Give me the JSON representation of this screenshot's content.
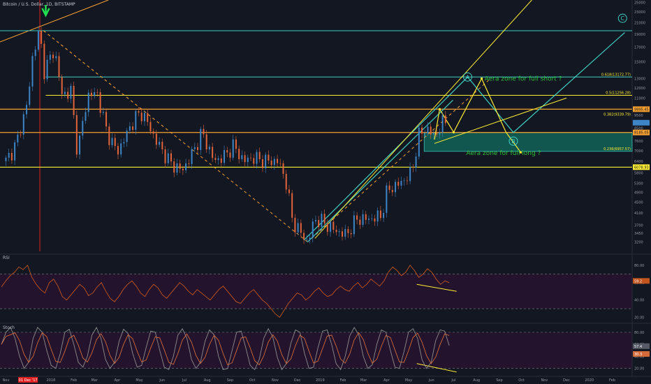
{
  "header": {
    "symbol_title": "Bitcoin / U.S. Dollar, 1D, BITSTAMP"
  },
  "panels": {
    "rsi_label": "RSI",
    "stoch_label": "Stoch"
  },
  "colors": {
    "background": "#131722",
    "up_candle": "#3d85c6",
    "down_candle": "#e2643a",
    "fib": "#3fd1c3",
    "yellow": "#ffee33",
    "orange": "#f7a030",
    "red": "#e02020",
    "rsi_line": "#c2541e",
    "stoch_line": "#8d8d8d",
    "label_green": "#2fbf3a",
    "marker_green": "#22e050",
    "panel_fill": "#24132c"
  },
  "chart_data": [
    {
      "type": "line",
      "title": "Bitcoin / U.S. Dollar, 1D, BITSTAMP",
      "y_scale": "log",
      "ylim": [
        2900,
        25500
      ],
      "x_ticks": [
        "Nov",
        "01 Dec '17",
        "2018",
        "Feb",
        "Mar",
        "Apr",
        "May",
        "Jun",
        "Jul",
        "Aug",
        "Sep",
        "Oct",
        "Nov",
        "Dec",
        "2019",
        "Feb",
        "Mar",
        "Apr",
        "May",
        "Jun",
        "Jul",
        "Aug",
        "Sep",
        "Oct",
        "Nov",
        "Dec",
        "2020",
        "Feb"
      ],
      "y_ticks": [
        25000,
        23000,
        21000,
        19000,
        17000,
        15000,
        13000,
        12000,
        11000,
        10000,
        9500,
        8500,
        7600,
        7000,
        6400,
        5800,
        5300,
        4900,
        4500,
        4100,
        3700,
        3450,
        3200
      ],
      "series": [
        {
          "x": [
            "2017-11-01",
            "2017-11-15",
            "2017-12-01",
            "2017-12-08",
            "2017-12-17",
            "2017-12-22",
            "2018-01-06",
            "2018-01-16",
            "2018-01-28",
            "2018-02-06",
            "2018-02-20",
            "2018-03-05",
            "2018-03-18",
            "2018-04-01",
            "2018-04-12",
            "2018-04-25",
            "2018-05-05",
            "2018-05-25",
            "2018-06-12",
            "2018-06-28",
            "2018-07-10",
            "2018-07-25",
            "2018-08-10",
            "2018-08-25",
            "2018-09-05",
            "2018-09-20",
            "2018-10-01",
            "2018-10-20",
            "2018-11-05",
            "2018-11-15",
            "2018-11-25",
            "2018-12-15",
            "2018-12-25",
            "2019-01-05",
            "2019-01-20",
            "2019-02-05",
            "2019-02-20",
            "2019-03-10",
            "2019-03-25",
            "2019-04-02",
            "2019-04-20",
            "2019-05-05",
            "2019-05-15",
            "2019-05-25",
            "2019-06-05",
            "2019-06-15",
            "2019-06-22"
          ],
          "values": [
            6400,
            7400,
            10800,
            16500,
            19600,
            13800,
            16700,
            11300,
            11700,
            6900,
            11300,
            11400,
            8200,
            6900,
            7900,
            9300,
            9700,
            7500,
            6300,
            5900,
            6700,
            8200,
            6400,
            6700,
            7300,
            6400,
            6600,
            6400,
            6400,
            5500,
            3800,
            3200,
            3900,
            3800,
            3550,
            3400,
            3900,
            3900,
            4000,
            5000,
            5300,
            5800,
            8000,
            8500,
            7900,
            8800,
            9200
          ]
        }
      ],
      "annotations": {
        "fib_levels": [
          {
            "label": "0.618(13172.77)",
            "value": 13172.77
          },
          {
            "label": "0.5(11256.28)",
            "value": 11256.28
          },
          {
            "label": "0.382(9339.79)",
            "value": 9339.79
          },
          {
            "label": "0.236(6957.57)",
            "value": 6957.57
          }
        ],
        "price_labels": [
          "9995.45",
          "8185.05",
          "6078.93"
        ],
        "wave_labels": [
          "A",
          "B",
          "C"
        ],
        "zone_short": "Aera zone for full short ?",
        "zone_long": "Aera zone for full long ?"
      }
    },
    {
      "type": "line",
      "title": "RSI",
      "ylim": [
        14,
        92
      ],
      "y_ticks": [
        80,
        60,
        40,
        20
      ],
      "levels": [
        70,
        30
      ],
      "current_label": "59.2",
      "values": [
        55,
        62,
        68,
        72,
        78,
        75,
        80,
        66,
        58,
        52,
        48,
        60,
        64,
        56,
        44,
        40,
        46,
        52,
        58,
        54,
        45,
        48,
        55,
        60,
        50,
        42,
        38,
        44,
        52,
        58,
        62,
        56,
        48,
        44,
        52,
        58,
        54,
        46,
        42,
        48,
        54,
        60,
        56,
        50,
        46,
        52,
        48,
        44,
        40,
        46,
        52,
        56,
        50,
        44,
        38,
        36,
        42,
        48,
        52,
        46,
        40,
        36,
        30,
        24,
        20,
        28,
        36,
        42,
        48,
        46,
        40,
        44,
        50,
        54,
        48,
        44,
        46,
        52,
        56,
        52,
        50,
        56,
        60,
        54,
        58,
        64,
        60,
        56,
        62,
        72,
        78,
        74,
        68,
        72,
        80,
        74,
        66,
        70,
        76,
        72,
        64,
        58,
        62,
        60
      ]
    },
    {
      "type": "line",
      "title": "Stoch",
      "ylim": [
        8,
        95
      ],
      "y_ticks": [
        80,
        60,
        40,
        20
      ],
      "levels": [
        80,
        20
      ],
      "current_labels": [
        "57.4",
        "30.3"
      ],
      "values": [
        60,
        80,
        88,
        70,
        40,
        20,
        30,
        70,
        88,
        80,
        50,
        25,
        20,
        45,
        80,
        85,
        60,
        30,
        22,
        40,
        75,
        88,
        70,
        35,
        20,
        30,
        65,
        85,
        78,
        45,
        22,
        25,
        55,
        82,
        80,
        50,
        22,
        18,
        40,
        75,
        86,
        70,
        35,
        20,
        30,
        65,
        84,
        76,
        40,
        18,
        20,
        50,
        80,
        82,
        55,
        25,
        18,
        35,
        70,
        86,
        72,
        38,
        18,
        28,
        62,
        84,
        80,
        45,
        20,
        22,
        55,
        82,
        84,
        60,
        28,
        18,
        40,
        74,
        88,
        76,
        40,
        20,
        26,
        60,
        84,
        80,
        50,
        22,
        20,
        48,
        80,
        86,
        70,
        34,
        20,
        30,
        66,
        84,
        82,
        58
      ]
    }
  ]
}
